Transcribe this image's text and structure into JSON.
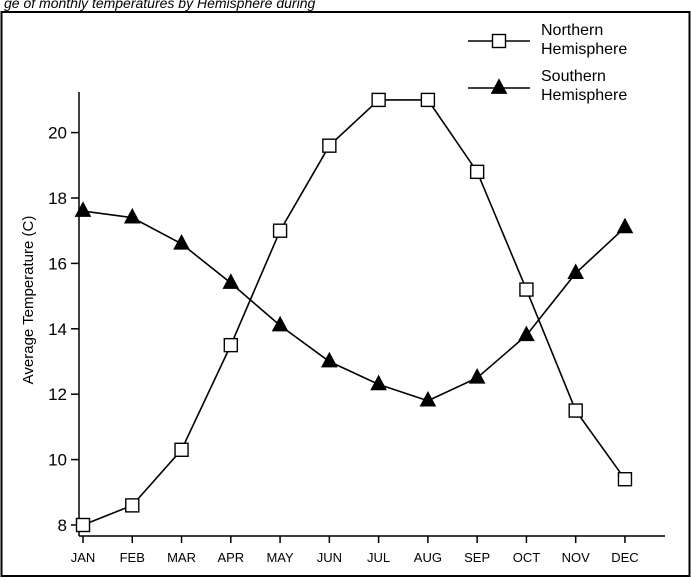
{
  "chart_data": {
    "type": "line",
    "title": "",
    "top_caption": "ge of monthly temperatures by Hemisphere during",
    "xlabel": "",
    "ylabel": "Average Temperature (C)",
    "categories": [
      "JAN",
      "FEB",
      "MAR",
      "APR",
      "MAY",
      "JUN",
      "JUL",
      "AUG",
      "SEP",
      "OCT",
      "NOV",
      "DEC"
    ],
    "ylim": [
      7.6,
      21.4
    ],
    "yticks": [
      8,
      10,
      12,
      14,
      16,
      18,
      20
    ],
    "grid": false,
    "legend_position": "top-right",
    "series": [
      {
        "name": "Northern Hemisphere",
        "name_lines": [
          "Northern",
          "Hemisphere"
        ],
        "marker": "square-open",
        "values": [
          8.0,
          8.6,
          10.3,
          13.5,
          17.0,
          19.6,
          21.0,
          21.0,
          18.8,
          15.2,
          11.5,
          9.4
        ]
      },
      {
        "name": "Southern Hemisphere",
        "name_lines": [
          "Southern",
          "Hemisphere"
        ],
        "marker": "triangle-filled",
        "values": [
          17.6,
          17.4,
          16.6,
          15.4,
          14.1,
          13.0,
          12.3,
          11.8,
          12.5,
          13.8,
          15.7,
          17.1
        ]
      }
    ]
  }
}
